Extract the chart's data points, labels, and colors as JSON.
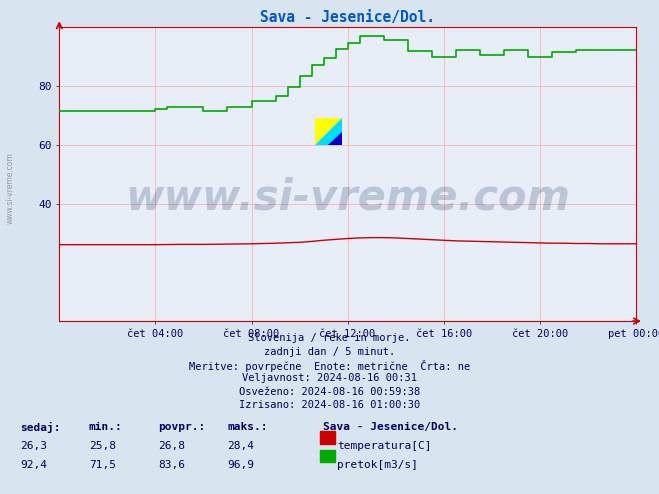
{
  "title": "Sava - Jesenice/Dol.",
  "title_color": "#0055cc",
  "background_color": "#d8e4f0",
  "plot_bg_color": "#e8eef8",
  "grid_color": "#ffaaaa",
  "axis_color": "#cc0000",
  "xlabel_ticks": [
    "čet 04:00",
    "čet 08:00",
    "čet 12:00",
    "čet 16:00",
    "čet 20:00",
    "pet 00:00"
  ],
  "yticks": [
    40,
    60,
    80
  ],
  "ylim": [
    0,
    100
  ],
  "xlim": [
    0,
    288
  ],
  "temp_color": "#cc0000",
  "flow_color": "#00aa00",
  "watermark_text": "www.si-vreme.com",
  "watermark_color": "#1a3a6a",
  "watermark_alpha": 0.22,
  "info_lines": [
    "Slovenija / reke in morje.",
    "zadnji dan / 5 minut.",
    "Meritve: povrpečne  Enote: metrične  Črta: ne",
    "Veljavnost: 2024-08-16 00:31",
    "Osveženo: 2024-08-16 00:59:38",
    "Izrisano: 2024-08-16 01:00:30"
  ],
  "table_headers": [
    "sedaj:",
    "min.:",
    "povpr.:",
    "maks.:"
  ],
  "table_row1": [
    "26,3",
    "25,8",
    "26,8",
    "28,4"
  ],
  "table_row2": [
    "92,4",
    "71,5",
    "83,6",
    "96,9"
  ],
  "legend_label1": "temperatura[C]",
  "legend_label2": "pretok[m3/s]",
  "station_label": "Sava - Jesenice/Dol.",
  "temp_data_x": [
    0,
    12,
    24,
    36,
    48,
    60,
    72,
    84,
    96,
    108,
    120,
    126,
    132,
    138,
    144,
    150,
    156,
    162,
    168,
    174,
    180,
    186,
    192,
    198,
    204,
    210,
    216,
    222,
    228,
    234,
    240,
    246,
    252,
    258,
    264,
    270,
    276,
    282,
    288
  ],
  "temp_data_y": [
    26.0,
    26.0,
    26.0,
    26.0,
    26.0,
    26.1,
    26.1,
    26.2,
    26.3,
    26.5,
    26.8,
    27.1,
    27.5,
    27.8,
    28.1,
    28.3,
    28.4,
    28.4,
    28.3,
    28.1,
    27.9,
    27.7,
    27.5,
    27.3,
    27.2,
    27.1,
    27.0,
    26.9,
    26.8,
    26.7,
    26.6,
    26.5,
    26.5,
    26.4,
    26.4,
    26.3,
    26.3,
    26.3,
    26.3
  ],
  "flow_x": [
    0,
    12,
    24,
    36,
    48,
    54,
    60,
    66,
    72,
    78,
    84,
    90,
    96,
    102,
    108,
    114,
    120,
    126,
    132,
    138,
    144,
    150,
    156,
    162,
    168,
    174,
    180,
    186,
    192,
    198,
    204,
    210,
    216,
    222,
    228,
    234,
    240,
    246,
    252,
    258,
    264,
    270,
    276,
    282,
    288
  ],
  "flow_y": [
    71.5,
    71.5,
    71.5,
    71.5,
    72.0,
    73.0,
    73.0,
    73.0,
    71.5,
    71.5,
    73.0,
    73.0,
    75.0,
    75.0,
    76.5,
    79.5,
    83.5,
    87.0,
    89.5,
    92.5,
    94.5,
    96.9,
    96.9,
    95.5,
    95.5,
    92.0,
    92.0,
    90.0,
    90.0,
    92.4,
    92.4,
    90.5,
    90.5,
    92.4,
    92.4,
    90.0,
    90.0,
    91.5,
    91.5,
    92.4,
    92.4,
    92.4,
    92.4,
    92.4,
    92.4
  ]
}
